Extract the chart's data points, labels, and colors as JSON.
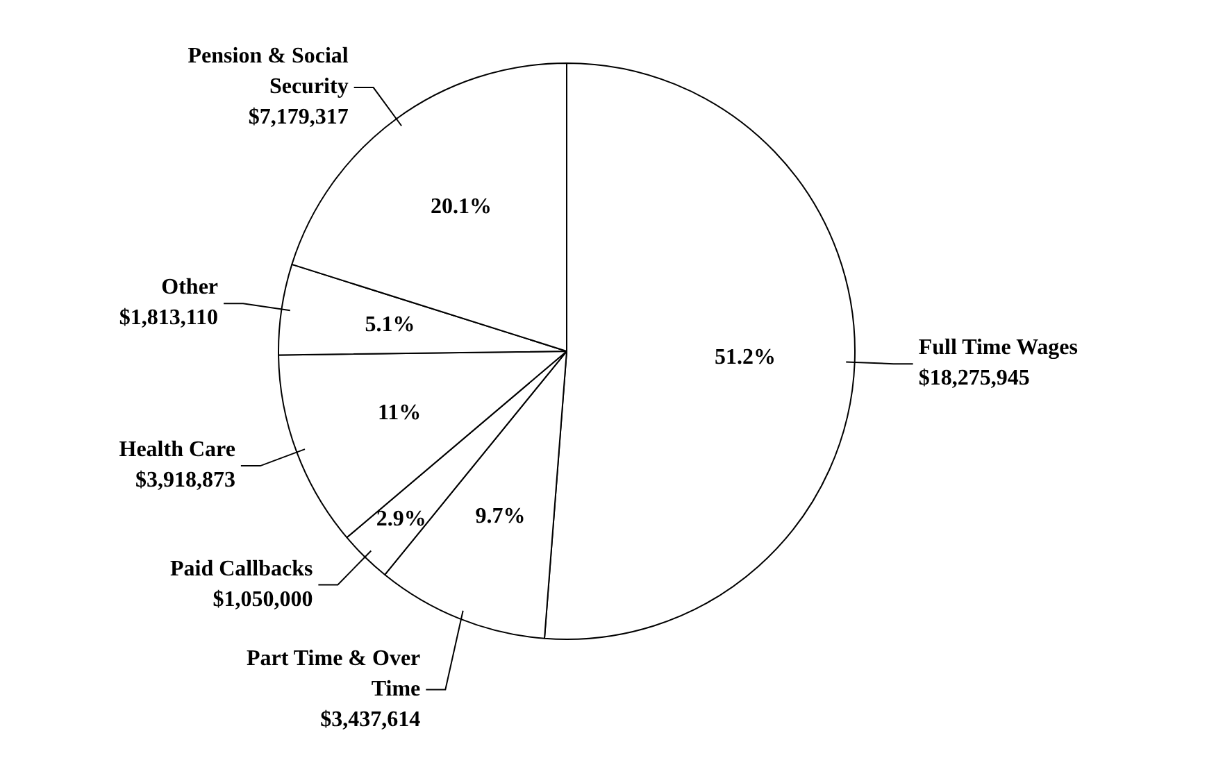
{
  "chart_data": {
    "type": "pie",
    "categories": [
      "Full Time Wages",
      "Part Time & Over Time",
      "Paid Callbacks",
      "Health Care",
      "Other",
      "Pension & Social Security"
    ],
    "values": [
      18275945,
      3437614,
      1050000,
      3918873,
      1813110,
      7179317
    ],
    "value_labels": [
      "$18,275,945",
      "$3,437,614",
      "$1,050,000",
      "$3,918,873",
      "$1,813,110",
      "$7,179,317"
    ],
    "annotations": [
      "51.2%",
      "9.7%",
      "2.9%",
      "11%",
      "5.1%",
      "20.1%"
    ],
    "colors": [
      "#ffffff",
      "#ffffff",
      "#ffffff",
      "#ffffff",
      "#ffffff",
      "#ffffff"
    ],
    "legend": false
  }
}
